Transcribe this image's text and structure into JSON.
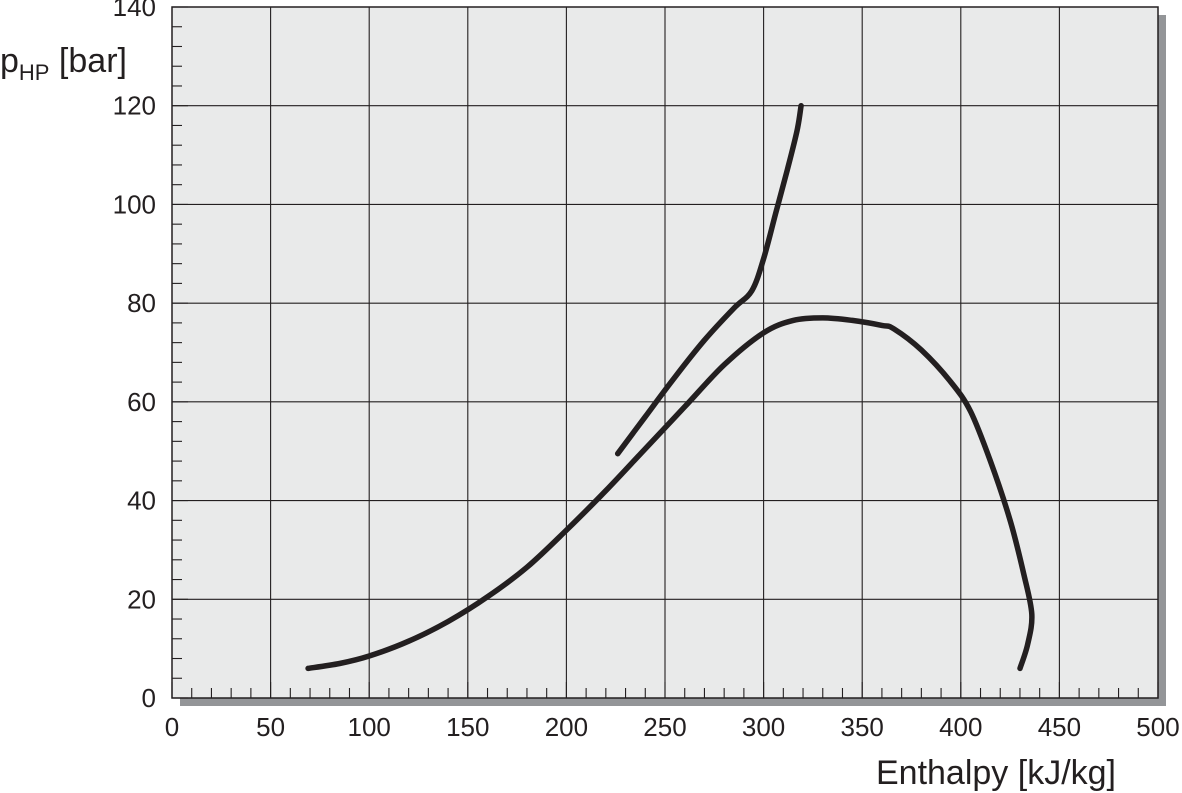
{
  "chart_data": {
    "type": "line",
    "title": "",
    "xlabel": "Enthalpy [kJ/kg]",
    "ylabel": {
      "main": "p",
      "sub": "HP",
      "unit": " [bar]"
    },
    "xlim": [
      0,
      500
    ],
    "ylim": [
      0,
      140
    ],
    "x_major_ticks": [
      0,
      50,
      100,
      150,
      200,
      250,
      300,
      350,
      400,
      450,
      500
    ],
    "y_major_ticks": [
      0,
      20,
      40,
      60,
      80,
      100,
      120,
      140
    ],
    "x_tick_labels": [
      "0",
      "50",
      "100",
      "150",
      "200",
      "250",
      "300",
      "350",
      "400",
      "450",
      "500"
    ],
    "y_tick_labels": [
      "0",
      "20",
      "40",
      "60",
      "80",
      "100",
      "120",
      "140"
    ],
    "x_minor_step": 10,
    "y_minor_step": 4,
    "grid": true,
    "legend": "none",
    "colors": {
      "plot_background": "#e9eaea",
      "line": "#231f20",
      "grid": "#231f20",
      "shadow": "#939598"
    },
    "series": [
      {
        "points": [
          [
            69,
            6
          ],
          [
            85,
            7
          ],
          [
            100,
            8.5
          ],
          [
            120,
            11.5
          ],
          [
            140,
            15.5
          ],
          [
            160,
            20.5
          ],
          [
            180,
            26.5
          ],
          [
            200,
            34
          ],
          [
            220,
            42
          ],
          [
            240,
            50.5
          ],
          [
            260,
            59
          ],
          [
            280,
            67.5
          ],
          [
            300,
            74
          ],
          [
            315,
            76.5
          ],
          [
            330,
            77
          ],
          [
            345,
            76.5
          ],
          [
            360,
            75.5
          ],
          [
            366,
            74.8
          ],
          [
            380,
            70.5
          ],
          [
            395,
            64
          ],
          [
            405,
            58
          ],
          [
            415,
            48
          ],
          [
            425,
            36
          ],
          [
            432,
            25
          ],
          [
            436,
            17
          ],
          [
            434,
            11
          ],
          [
            430,
            6
          ]
        ]
      },
      {
        "points": [
          [
            226,
            49.5
          ],
          [
            240,
            57
          ],
          [
            255,
            65
          ],
          [
            270,
            72.5
          ],
          [
            285,
            79
          ],
          [
            294,
            82.5
          ],
          [
            300,
            89
          ],
          [
            306,
            98
          ],
          [
            312,
            107
          ],
          [
            317,
            115
          ],
          [
            319,
            120
          ]
        ]
      }
    ]
  }
}
